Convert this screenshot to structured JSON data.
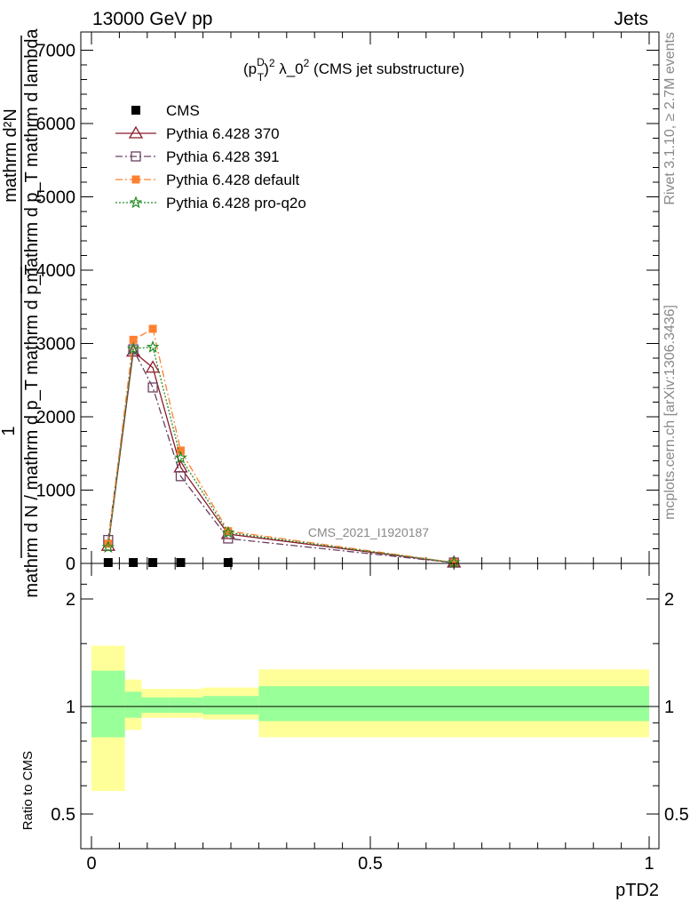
{
  "header": {
    "left": "13000 GeV pp",
    "right": "Jets"
  },
  "side_labels": {
    "rivet": "Rivet 3.1.10, ≥ 2.7M events",
    "mcplots": "mcplots.cern.ch [arXiv:1306.3436]"
  },
  "chart_data": [
    {
      "type": "line",
      "title": "(p_T^D)^2 λ_0^2 (CMS jet substructure)",
      "title_parts": {
        "p": "(p",
        "sup1": "D",
        "sub1": "T",
        "close": ")",
        "sup2": "2",
        "lam": " λ_0",
        "sup3": "2",
        "rest": " (CMS jet substructure)"
      },
      "ylabel": {
        "num": "mathrm d²N",
        "den": "mathrm d p_T mathrm d lambda",
        "frac_one": "1",
        "frac_den": "mathrm d N / mathrm d p_T mathrm d p_T"
      },
      "xlim": [
        0,
        1
      ],
      "ylim": [
        0,
        7000
      ],
      "yticks": [
        0,
        1000,
        2000,
        3000,
        4000,
        5000,
        6000,
        7000
      ],
      "ytick_labels": [
        "0",
        "1000",
        "2000",
        "3000",
        "4000",
        "5000",
        "6000",
        "7000"
      ],
      "watermark": "CMS_2021_I1920187",
      "legend_position": "top-left",
      "series": [
        {
          "name": "CMS",
          "color": "#000000",
          "marker": "square",
          "x": [
            0.03,
            0.075,
            0.11,
            0.16,
            0.245,
            0.65
          ],
          "y": [
            4,
            16,
            16,
            9,
            3,
            0
          ]
        },
        {
          "name": "Pythia 6.428 370",
          "color": "#8b1a2b",
          "marker": "triangle-open",
          "dash": "solid",
          "x": [
            0.03,
            0.075,
            0.11,
            0.16,
            0.245,
            0.65
          ],
          "y": [
            240,
            2890,
            2670,
            1310,
            400,
            10
          ]
        },
        {
          "name": "Pythia 6.428 391",
          "color": "#6b4060",
          "marker": "square-open",
          "dash": "dashdot",
          "x": [
            0.03,
            0.075,
            0.11,
            0.16,
            0.245,
            0.65
          ],
          "y": [
            320,
            2920,
            2400,
            1190,
            340,
            10
          ]
        },
        {
          "name": "Pythia 6.428 default",
          "color": "#ff8030",
          "marker": "square-filled",
          "dash": "dashdot",
          "x": [
            0.03,
            0.075,
            0.11,
            0.16,
            0.245,
            0.65
          ],
          "y": [
            270,
            3050,
            3200,
            1540,
            440,
            12
          ]
        },
        {
          "name": "Pythia 6.428 pro-q2o",
          "color": "#228b22",
          "marker": "star",
          "dash": "dotted",
          "x": [
            0.03,
            0.075,
            0.11,
            0.16,
            0.245,
            0.65
          ],
          "y": [
            220,
            2930,
            2950,
            1440,
            420,
            11
          ]
        }
      ]
    },
    {
      "type": "area",
      "ylabel": "Ratio to CMS",
      "xlabel": "pTD2",
      "xlim": [
        0,
        1
      ],
      "ylim": [
        0.4,
        2.4
      ],
      "log_y": true,
      "yticks": [
        0.5,
        1,
        2
      ],
      "ytick_labels": [
        "0.5",
        "1",
        "2"
      ],
      "xticks": [
        0,
        0.5,
        1
      ],
      "xtick_labels": [
        "0",
        "0.5",
        "1"
      ],
      "bands": [
        {
          "x0": 0.0,
          "x1": 0.06,
          "inner": [
            0.82,
            1.26
          ],
          "outer": [
            0.58,
            1.48
          ]
        },
        {
          "x0": 0.06,
          "x1": 0.09,
          "inner": [
            0.93,
            1.1
          ],
          "outer": [
            0.86,
            1.19
          ]
        },
        {
          "x0": 0.09,
          "x1": 0.14,
          "inner": [
            0.96,
            1.06
          ],
          "outer": [
            0.93,
            1.12
          ]
        },
        {
          "x0": 0.14,
          "x1": 0.2,
          "inner": [
            0.96,
            1.06
          ],
          "outer": [
            0.93,
            1.12
          ]
        },
        {
          "x0": 0.2,
          "x1": 0.3,
          "inner": [
            0.95,
            1.07
          ],
          "outer": [
            0.92,
            1.13
          ]
        },
        {
          "x0": 0.3,
          "x1": 1.0,
          "inner": [
            0.91,
            1.14
          ],
          "outer": [
            0.82,
            1.27
          ]
        }
      ],
      "colors": {
        "inner": "#99ff99",
        "outer": "#ffff99"
      }
    }
  ]
}
